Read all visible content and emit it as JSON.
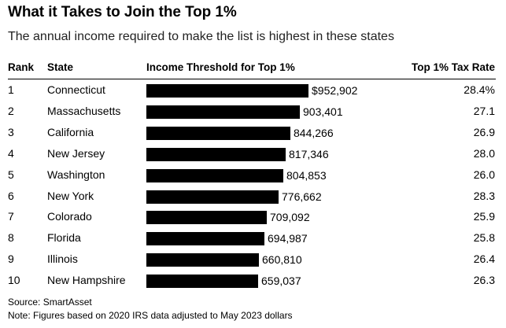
{
  "title": "What it Takes to Join the Top 1%",
  "subtitle": "The annual income required to make the list is highest in these states",
  "headers": {
    "rank": "Rank",
    "state": "State",
    "income": "Income Threshold for Top 1%",
    "tax": "Top 1% Tax Rate"
  },
  "source": "Source: SmartAsset",
  "note": "Note: Figures based on 2020 IRS data adjusted to May 2023 dollars",
  "chart_data": {
    "type": "bar",
    "orientation": "horizontal",
    "bar_color": "#000000",
    "categories": [
      "Connecticut",
      "Massachusetts",
      "California",
      "New Jersey",
      "Washington",
      "New York",
      "Colorado",
      "Florida",
      "Illinois",
      "New Hampshire"
    ],
    "values": [
      952902,
      903401,
      844266,
      817346,
      804853,
      776662,
      709092,
      694987,
      660810,
      659037
    ],
    "rows": [
      {
        "rank": "1",
        "state": "Connecticut",
        "income": 952902,
        "income_label": "$952,902",
        "tax": "28.4%"
      },
      {
        "rank": "2",
        "state": "Massachusetts",
        "income": 903401,
        "income_label": "903,401",
        "tax": "27.1"
      },
      {
        "rank": "3",
        "state": "California",
        "income": 844266,
        "income_label": "844,266",
        "tax": "26.9"
      },
      {
        "rank": "4",
        "state": "New Jersey",
        "income": 817346,
        "income_label": "817,346",
        "tax": "28.0"
      },
      {
        "rank": "5",
        "state": "Washington",
        "income": 804853,
        "income_label": "804,853",
        "tax": "26.0"
      },
      {
        "rank": "6",
        "state": "New York",
        "income": 776662,
        "income_label": "776,662",
        "tax": "28.3"
      },
      {
        "rank": "7",
        "state": "Colorado",
        "income": 709092,
        "income_label": "709,092",
        "tax": "25.9"
      },
      {
        "rank": "8",
        "state": "Florida",
        "income": 694987,
        "income_label": "694,987",
        "tax": "25.8"
      },
      {
        "rank": "9",
        "state": "Illinois",
        "income": 660810,
        "income_label": "660,810",
        "tax": "26.4"
      },
      {
        "rank": "10",
        "state": "New Hampshire",
        "income": 659037,
        "income_label": "659,037",
        "tax": "26.3"
      }
    ]
  }
}
